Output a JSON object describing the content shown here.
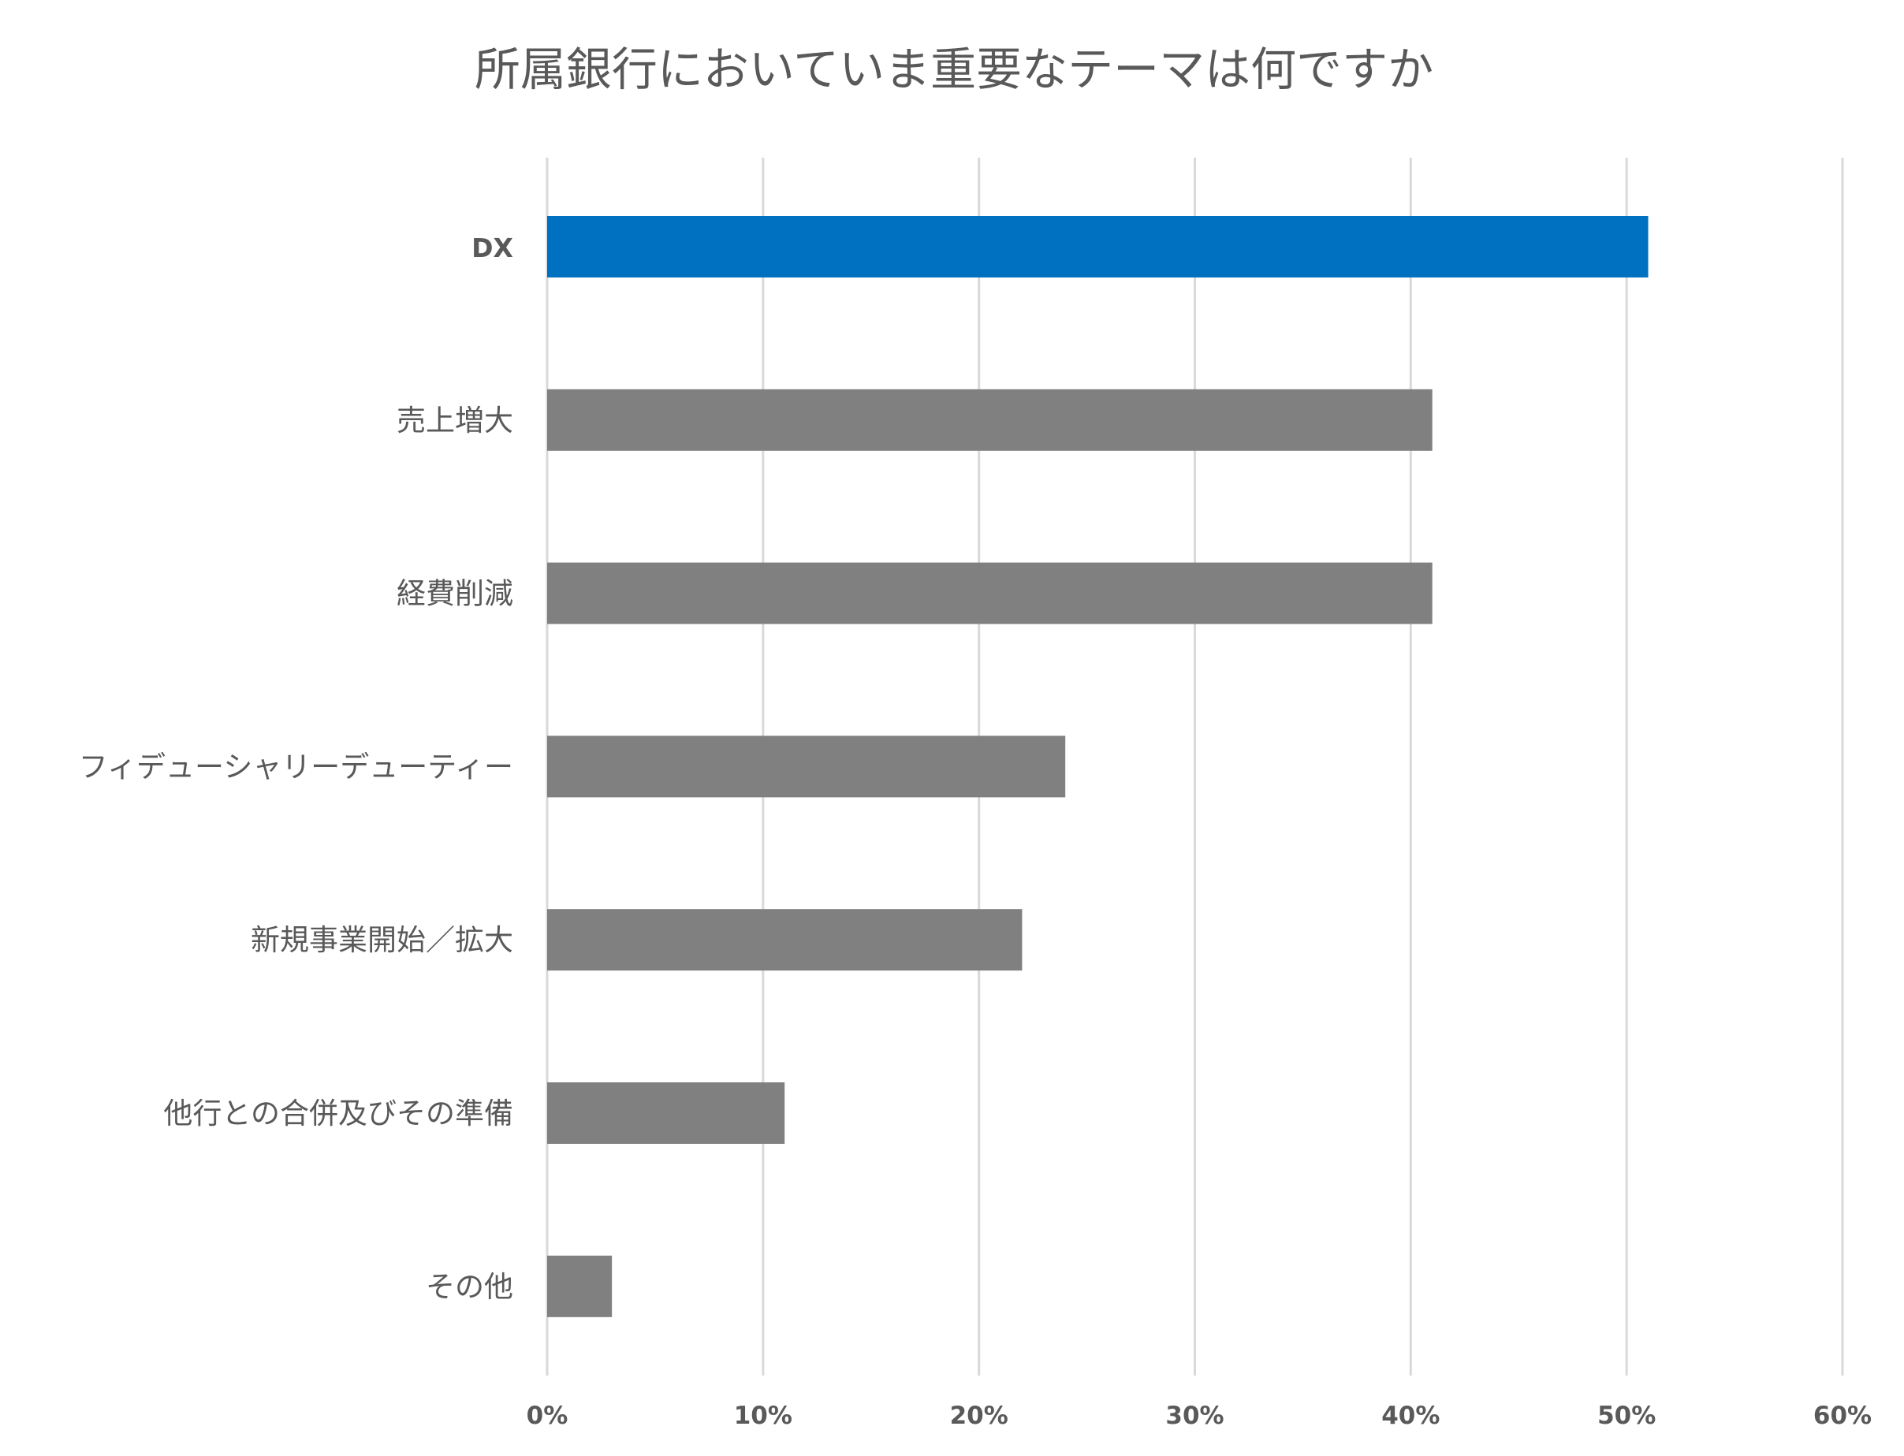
{
  "colors": {
    "highlight": "#0070c0",
    "bar": "#808080",
    "text": "#595959",
    "grid": "#d9d9d9"
  },
  "chart_data": {
    "type": "bar",
    "orientation": "horizontal",
    "title": "所属銀行においていま重要なテーマは何ですか",
    "xlabel": "",
    "ylabel": "",
    "categories": [
      "DX",
      "売上増大",
      "経費削減",
      "フィデューシャリーデューティー",
      "新規事業開始／拡大",
      "他行との合併及びその準備",
      "その他"
    ],
    "values": [
      51,
      41,
      41,
      24,
      22,
      11,
      3
    ],
    "value_unit": "%",
    "highlight_category": "DX",
    "xlim": [
      0,
      60
    ],
    "xticks": [
      0,
      10,
      20,
      30,
      40,
      50,
      60
    ],
    "xtick_labels": [
      "0%",
      "10%",
      "20%",
      "30%",
      "40%",
      "50%",
      "60%"
    ],
    "grid": "vertical",
    "legend": "none"
  }
}
